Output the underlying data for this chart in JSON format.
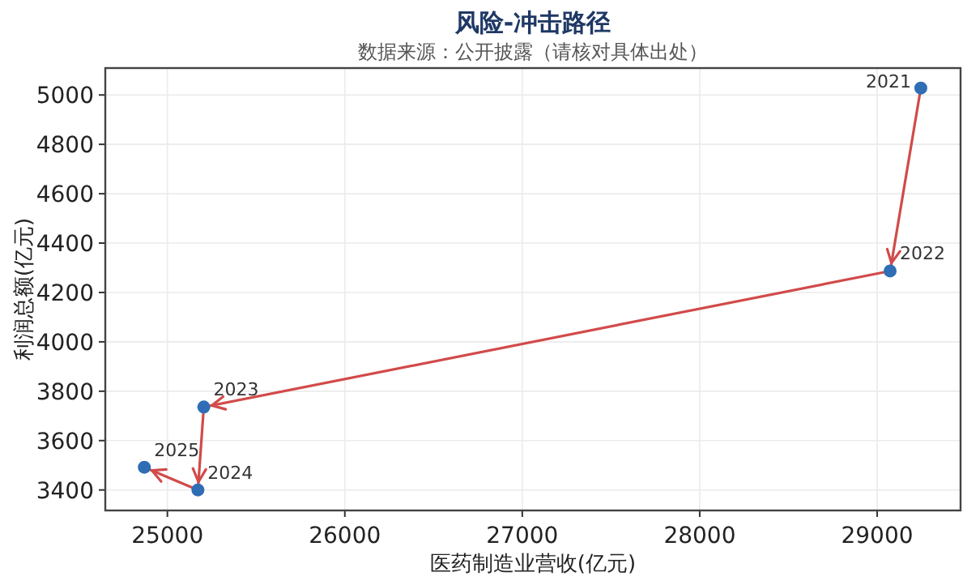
{
  "chart_data": {
    "type": "line",
    "title": "风险-冲击路径",
    "subtitle": "数据来源：公开披露（请核对具体出处）",
    "xlabel": "医药制造业营收(亿元)",
    "ylabel": "利润总额(亿元)",
    "xlim": [
      24650,
      29470
    ],
    "xticks": [
      25000,
      26000,
      27000,
      28000,
      29000
    ],
    "ylim": [
      3317,
      5109
    ],
    "yticks": [
      3400,
      3600,
      3800,
      4000,
      4200,
      4400,
      4600,
      4800,
      5000
    ],
    "grid": true,
    "series": [
      {
        "line_style": "solid",
        "marker": "none",
        "color": "#d24a4a",
        "x": [
          29246,
          29073,
          25205,
          25172,
          24870
        ],
        "values": [
          5028,
          4287,
          3736,
          3400,
          3492
        ]
      },
      {
        "type": "scatter",
        "marker": "circle",
        "color": "#2f6db5",
        "x": [
          29246,
          29073,
          25205,
          25172,
          24870
        ],
        "values": [
          5028,
          4287,
          3736,
          3400,
          3492
        ]
      }
    ],
    "annotations": [
      {
        "text": "2021",
        "x": 29246,
        "y": 5028
      },
      {
        "text": "2022",
        "x": 29073,
        "y": 4287
      },
      {
        "text": "2023",
        "x": 25205,
        "y": 3736
      },
      {
        "text": "2024",
        "x": 25172,
        "y": 3400
      },
      {
        "text": "2025",
        "x": 24870,
        "y": 3492
      }
    ]
  }
}
